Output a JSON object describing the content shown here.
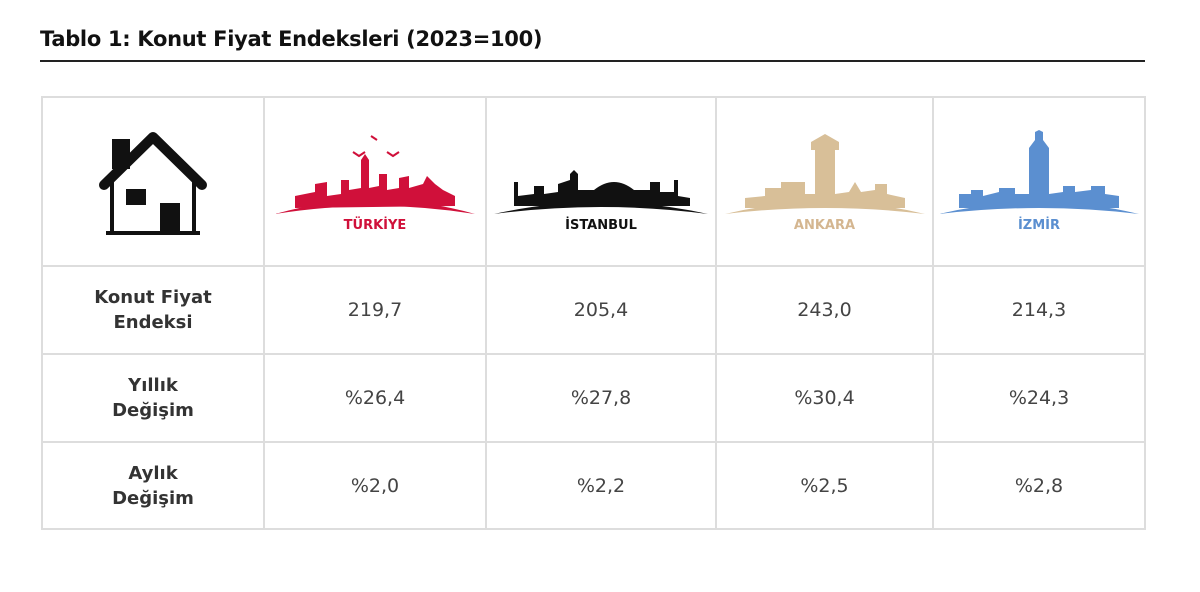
{
  "header": {
    "title": "Tablo 1: Konut Fiyat Endeksleri (2023=100)"
  },
  "table": {
    "columns": [
      "TÜRKİYE",
      "İSTANBUL",
      "ANKARA",
      "İZMİR"
    ],
    "rows": [
      {
        "label": [
          "Konut Fiyat",
          "Endeksi"
        ],
        "values": [
          "219,7",
          "205,4",
          "243,0",
          "214,3"
        ]
      },
      {
        "label": [
          "Yıllık",
          "Değişim"
        ],
        "values": [
          "%26,4",
          "%27,8",
          "%30,4",
          "%24,3"
        ]
      },
      {
        "label": [
          "Aylık",
          "Değişim"
        ],
        "values": [
          "%2,0",
          "%2,2",
          "%2,5",
          "%2,8"
        ]
      }
    ]
  }
}
